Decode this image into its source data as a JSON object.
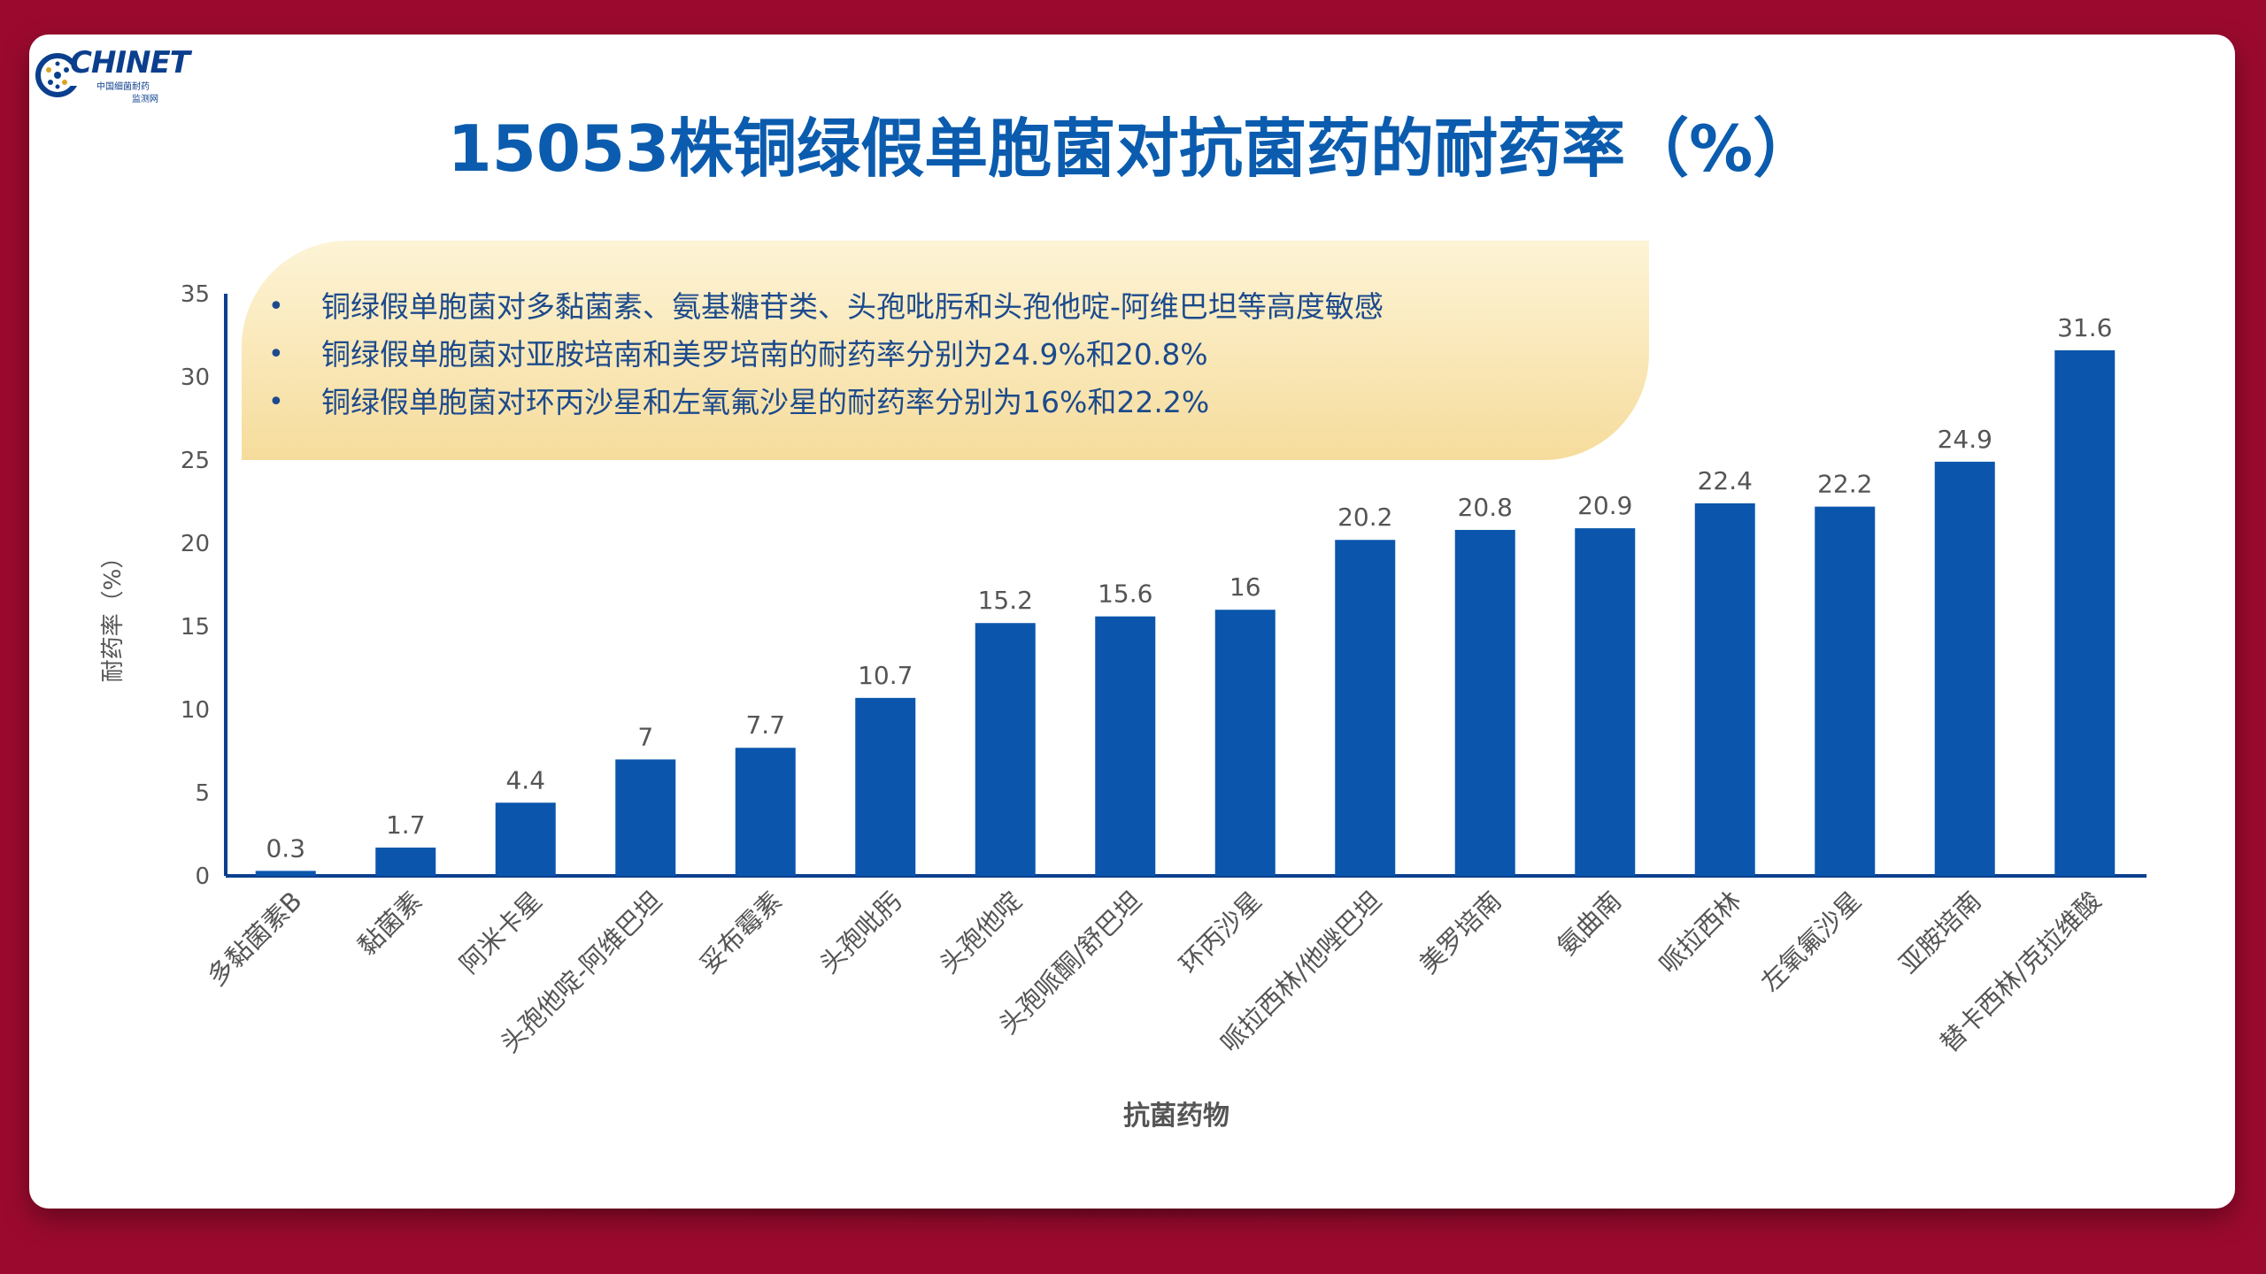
{
  "logo": {
    "brand": "CHINET",
    "subtitle_line1": "中国细菌耐药",
    "subtitle_line2": "监测网"
  },
  "title": "15053株铜绿假单胞菌对抗菌药的耐药率（%）",
  "notes": [
    "铜绿假单胞菌对多黏菌素、氨基糖苷类、头孢吡肟和头孢他啶-阿维巴坦等高度敏感",
    "铜绿假单胞菌对亚胺培南和美罗培南的耐药率分别为24.9%和20.8%",
    "铜绿假单胞菌对环丙沙星和左氧氟沙星的耐药率分别为16%和22.2%"
  ],
  "colors": {
    "background": "#9b0a2e",
    "title": "#0b5cae",
    "bar": "#0b56ac",
    "axis": "#0b3f8e"
  },
  "chart_data": {
    "type": "bar",
    "title": "",
    "xlabel": "抗菌药物",
    "ylabel": "耐药率（%）",
    "ylim": [
      0,
      35
    ],
    "yticks": [
      0,
      5,
      10,
      15,
      20,
      25,
      30,
      35
    ],
    "grid": false,
    "categories": [
      "多黏菌素B",
      "黏菌素",
      "阿米卡星",
      "头孢他啶-阿维巴坦",
      "妥布霉素",
      "头孢吡肟",
      "头孢他啶",
      "头孢哌酮/舒巴坦",
      "环丙沙星",
      "哌拉西林/他唑巴坦",
      "美罗培南",
      "氨曲南",
      "哌拉西林",
      "左氧氟沙星",
      "亚胺培南",
      "替卡西林/克拉维酸"
    ],
    "values": [
      0.3,
      1.7,
      4.4,
      7,
      7.7,
      10.7,
      15.2,
      15.6,
      16,
      20.2,
      20.8,
      20.9,
      22.4,
      22.2,
      24.9,
      31.6
    ],
    "value_labels": [
      "0.3",
      "1.7",
      "4.4",
      "7",
      "7.7",
      "10.7",
      "15.2",
      "15.6",
      "16",
      "20.2",
      "20.8",
      "20.9",
      "22.4",
      "22.2",
      "24.9",
      "31.6"
    ]
  }
}
